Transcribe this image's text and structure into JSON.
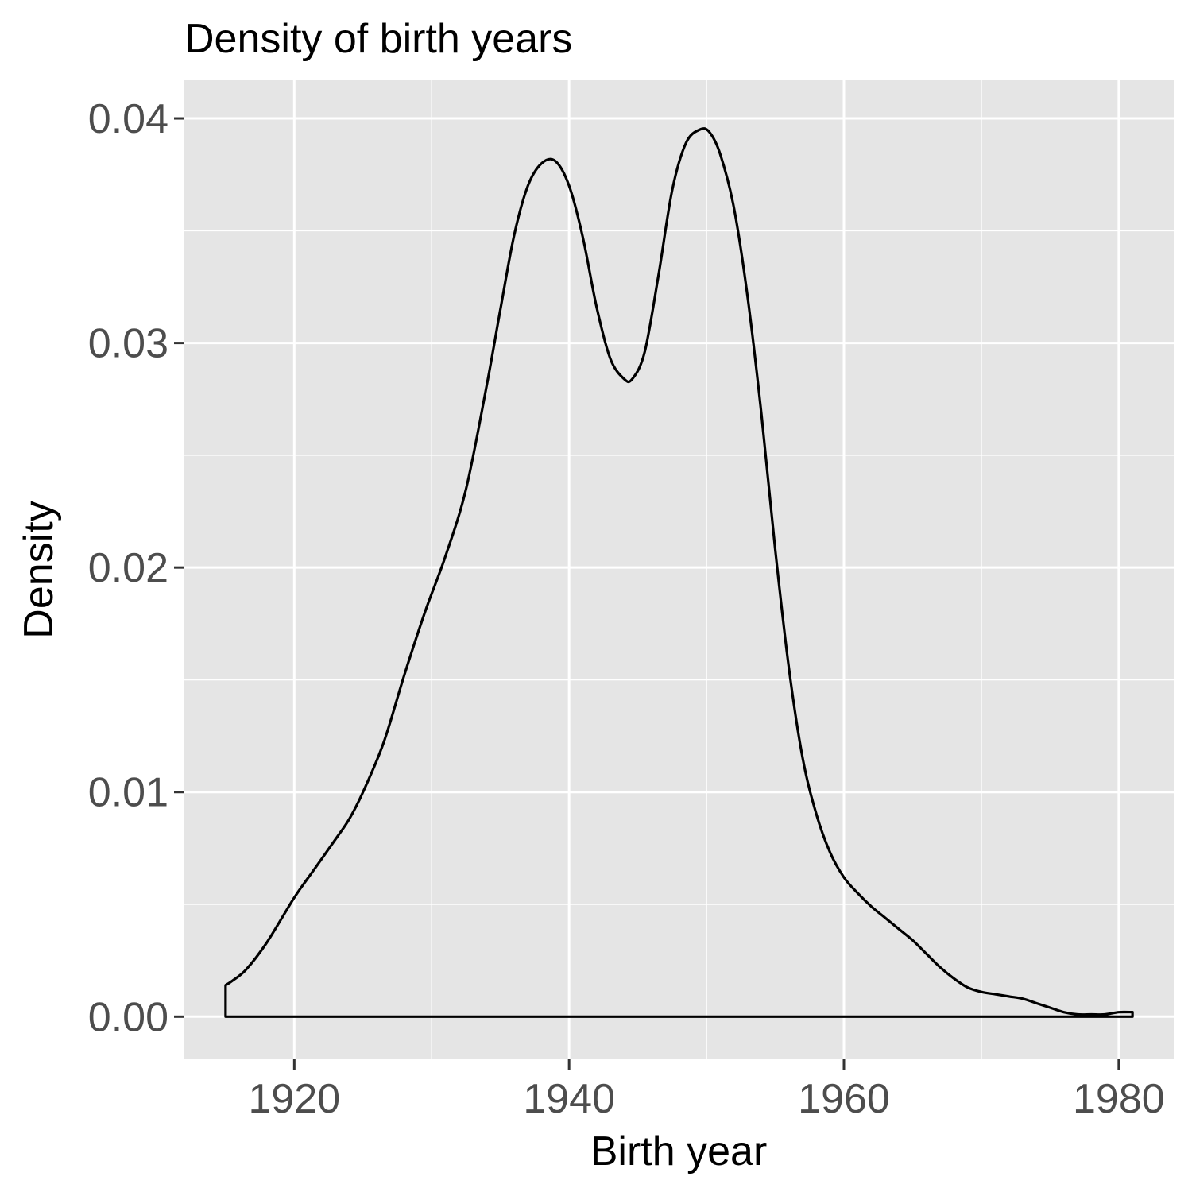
{
  "chart_data": {
    "type": "line",
    "subtype": "density",
    "title": "Density of birth years",
    "xlabel": "Birth year",
    "ylabel": "Density",
    "xlim": [
      1912,
      1984
    ],
    "ylim": [
      -0.0019,
      0.0417
    ],
    "x_ticks": [
      1920,
      1940,
      1960,
      1980
    ],
    "x_tick_labels": [
      "1920",
      "1940",
      "1960",
      "1980"
    ],
    "y_ticks": [
      0.0,
      0.01,
      0.02,
      0.03,
      0.04
    ],
    "y_tick_labels": [
      "0.00",
      "0.01",
      "0.02",
      "0.03",
      "0.04"
    ],
    "grid": true,
    "legend": "none",
    "line_color": "#000000",
    "panel_color": "#e5e5e5",
    "grid_color": "#ffffff",
    "series": [
      {
        "x": [
          1915,
          1915.5,
          1916.5,
          1918,
          1920,
          1921.5,
          1923,
          1924,
          1925,
          1926.5,
          1928,
          1929.5,
          1931,
          1932.5,
          1934,
          1935,
          1936,
          1937,
          1938,
          1939,
          1940,
          1941,
          1942,
          1943,
          1944,
          1944.6,
          1945.5,
          1946.5,
          1947.5,
          1948.5,
          1949.5,
          1950.2,
          1951,
          1952,
          1953,
          1954,
          1955,
          1956,
          1957,
          1958,
          1959,
          1960,
          1961,
          1962,
          1963,
          1964,
          1965,
          1966,
          1967,
          1968,
          1969,
          1970,
          1971,
          1972,
          1973,
          1974,
          1975,
          1976,
          1977,
          1978,
          1979,
          1980,
          1981
        ],
        "y": [
          0.0014,
          0.0016,
          0.0021,
          0.0033,
          0.0053,
          0.0066,
          0.0079,
          0.0088,
          0.01,
          0.0122,
          0.0152,
          0.018,
          0.0205,
          0.0235,
          0.0281,
          0.0315,
          0.0348,
          0.037,
          0.038,
          0.0381,
          0.037,
          0.0347,
          0.0316,
          0.0293,
          0.0284,
          0.0284,
          0.0296,
          0.033,
          0.0368,
          0.0389,
          0.0395,
          0.0394,
          0.0384,
          0.036,
          0.032,
          0.0268,
          0.0208,
          0.0155,
          0.0115,
          0.009,
          0.0073,
          0.0062,
          0.0055,
          0.0049,
          0.0044,
          0.0039,
          0.0034,
          0.0028,
          0.0022,
          0.0017,
          0.0013,
          0.0011,
          0.001,
          0.0009,
          0.0008,
          0.0006,
          0.0004,
          0.0002,
          0.0001,
          0.0001,
          0.0001,
          0.0002,
          0.0002
        ]
      }
    ]
  }
}
